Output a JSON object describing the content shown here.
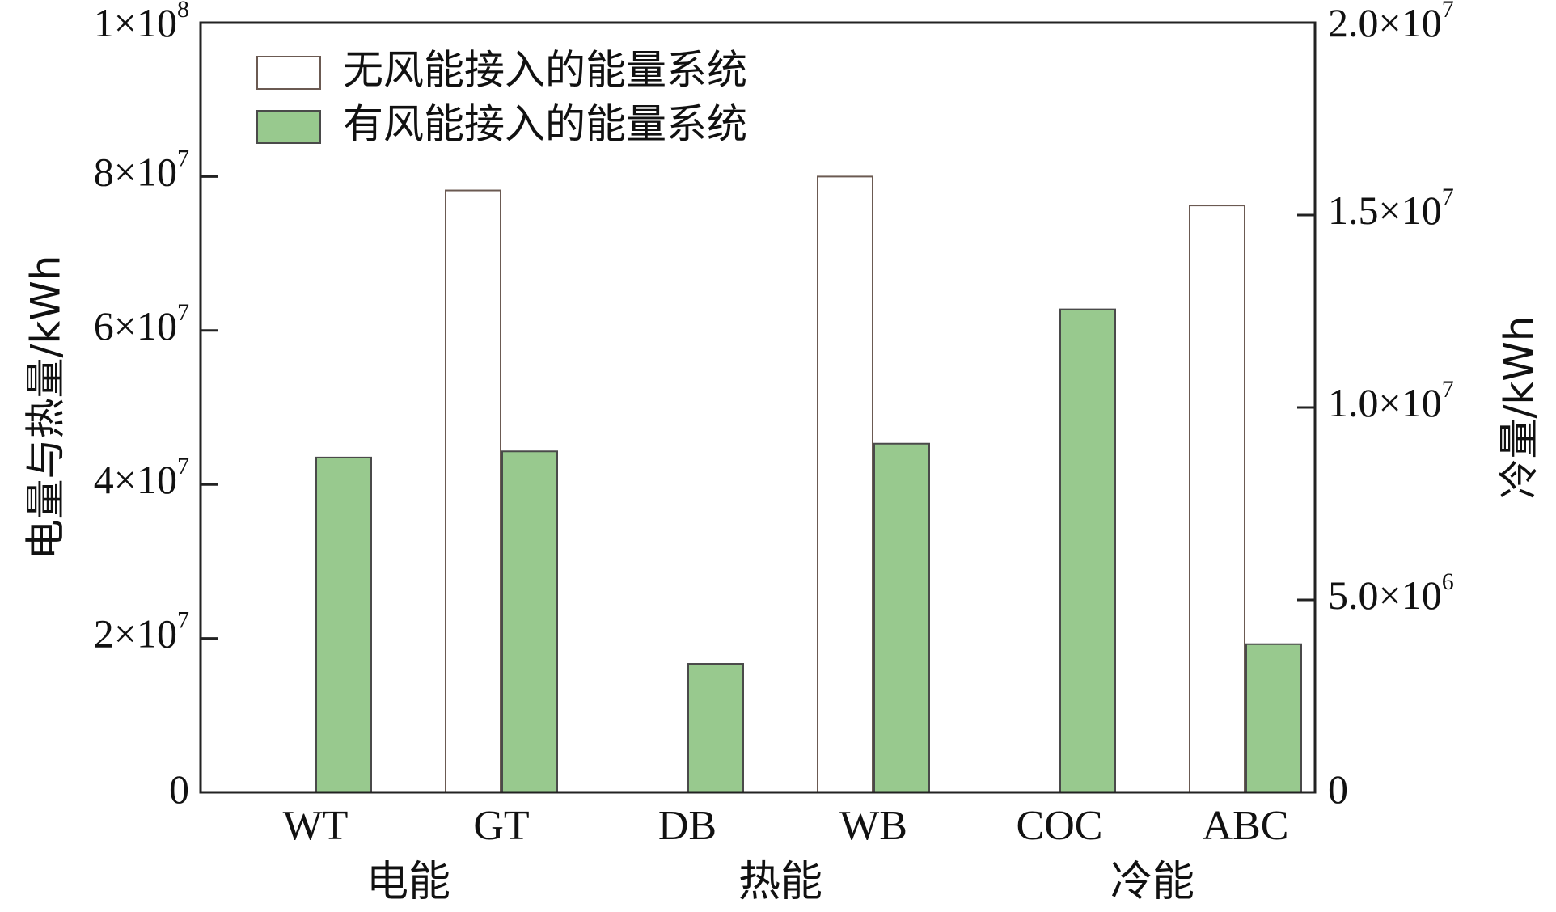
{
  "chart_data": {
    "type": "bar",
    "categories": [
      "WT",
      "GT",
      "DB",
      "WB",
      "COC",
      "ABC"
    ],
    "groups": [
      {
        "label": "电能",
        "categories": [
          "WT",
          "GT"
        ]
      },
      {
        "label": "热能",
        "categories": [
          "DB",
          "WB"
        ]
      },
      {
        "label": "冷能",
        "categories": [
          "COC",
          "ABC"
        ]
      }
    ],
    "series": [
      {
        "name": "无风能接入的能量系统",
        "fill": "#ffffff",
        "stroke": "#6b5a52",
        "values": [
          0,
          78200000,
          0,
          80000000,
          0,
          15250000
        ]
      },
      {
        "name": "有风能接入的能量系统",
        "fill": "#98c98e",
        "stroke": "#4a4a4a",
        "values": [
          43500000,
          44300000,
          16700000,
          45300000,
          12550000,
          3850000
        ]
      }
    ],
    "axis_assignment": [
      "left",
      "left",
      "left",
      "left",
      "right",
      "right"
    ],
    "left_axis": {
      "label": "电量与热量/kWh",
      "range": [
        0,
        100000000
      ],
      "ticks": [
        {
          "value": 0,
          "mantissa": "0",
          "exp": ""
        },
        {
          "value": 20000000,
          "mantissa": "2×10",
          "exp": "7"
        },
        {
          "value": 40000000,
          "mantissa": "4×10",
          "exp": "7"
        },
        {
          "value": 60000000,
          "mantissa": "6×10",
          "exp": "7"
        },
        {
          "value": 80000000,
          "mantissa": "8×10",
          "exp": "7"
        },
        {
          "value": 100000000,
          "mantissa": "1×10",
          "exp": "8"
        }
      ]
    },
    "right_axis": {
      "label": "冷量/kWh",
      "range": [
        0,
        20000000
      ],
      "ticks": [
        {
          "value": 0,
          "mantissa": "0",
          "exp": ""
        },
        {
          "value": 5000000,
          "mantissa": "5.0×10",
          "exp": "6"
        },
        {
          "value": 10000000,
          "mantissa": "1.0×10",
          "exp": "7"
        },
        {
          "value": 15000000,
          "mantissa": "1.5×10",
          "exp": "7"
        },
        {
          "value": 20000000,
          "mantissa": "2.0×10",
          "exp": "7"
        }
      ]
    },
    "legend_position": "top-left",
    "grid": false
  }
}
